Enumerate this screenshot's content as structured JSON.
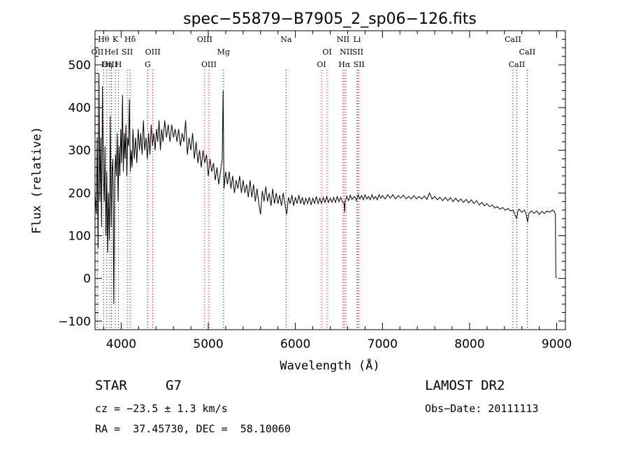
{
  "chart_data": {
    "type": "line",
    "title": "spec−55879−B7905_2_sp06−126.fits",
    "xlabel": "Wavelength (Å)",
    "ylabel": "Flux (relative)",
    "xlim": [
      3700,
      9100
    ],
    "ylim": [
      -120,
      580
    ],
    "x_ticks": [
      4000,
      5000,
      6000,
      7000,
      8000,
      9000
    ],
    "x_tick_labels": [
      "4000",
      "5000",
      "6000",
      "7000",
      "8000",
      "9000"
    ],
    "y_ticks": [
      -100,
      0,
      100,
      200,
      300,
      400,
      500
    ],
    "y_tick_labels": [
      "−100",
      "0",
      "100",
      "200",
      "300",
      "400",
      "500"
    ],
    "series": [
      {
        "color": "#000000",
        "points": [
          [
            3700,
            200
          ],
          [
            3715,
            150
          ],
          [
            3725,
            330
          ],
          [
            3735,
            70
          ],
          [
            3745,
            480
          ],
          [
            3755,
            180
          ],
          [
            3765,
            330
          ],
          [
            3775,
            120
          ],
          [
            3785,
            450
          ],
          [
            3795,
            250
          ],
          [
            3805,
            180
          ],
          [
            3815,
            310
          ],
          [
            3825,
            100
          ],
          [
            3835,
            250
          ],
          [
            3845,
            60
          ],
          [
            3855,
            200
          ],
          [
            3865,
            90
          ],
          [
            3875,
            380
          ],
          [
            3885,
            120
          ],
          [
            3895,
            250
          ],
          [
            3905,
            280
          ],
          [
            3915,
            -60
          ],
          [
            3925,
            230
          ],
          [
            3935,
            290
          ],
          [
            3945,
            240
          ],
          [
            3955,
            340
          ],
          [
            3965,
            180
          ],
          [
            3975,
            310
          ],
          [
            3985,
            240
          ],
          [
            3995,
            350
          ],
          [
            4005,
            270
          ],
          [
            4015,
            430
          ],
          [
            4025,
            250
          ],
          [
            4035,
            340
          ],
          [
            4045,
            280
          ],
          [
            4055,
            360
          ],
          [
            4065,
            240
          ],
          [
            4075,
            330
          ],
          [
            4085,
            310
          ],
          [
            4095,
            420
          ],
          [
            4105,
            250
          ],
          [
            4115,
            300
          ],
          [
            4125,
            260
          ],
          [
            4135,
            350
          ],
          [
            4150,
            280
          ],
          [
            4165,
            330
          ],
          [
            4180,
            270
          ],
          [
            4195,
            350
          ],
          [
            4210,
            300
          ],
          [
            4225,
            340
          ],
          [
            4240,
            290
          ],
          [
            4255,
            370
          ],
          [
            4270,
            300
          ],
          [
            4285,
            330
          ],
          [
            4300,
            280
          ],
          [
            4315,
            340
          ],
          [
            4330,
            290
          ],
          [
            4345,
            360
          ],
          [
            4360,
            310
          ],
          [
            4375,
            340
          ],
          [
            4390,
            300
          ],
          [
            4405,
            350
          ],
          [
            4420,
            320
          ],
          [
            4435,
            370
          ],
          [
            4450,
            300
          ],
          [
            4465,
            350
          ],
          [
            4480,
            320
          ],
          [
            4500,
            370
          ],
          [
            4520,
            330
          ],
          [
            4540,
            360
          ],
          [
            4560,
            320
          ],
          [
            4580,
            360
          ],
          [
            4600,
            330
          ],
          [
            4620,
            350
          ],
          [
            4640,
            320
          ],
          [
            4660,
            350
          ],
          [
            4680,
            310
          ],
          [
            4700,
            340
          ],
          [
            4720,
            320
          ],
          [
            4740,
            370
          ],
          [
            4760,
            290
          ],
          [
            4780,
            330
          ],
          [
            4800,
            300
          ],
          [
            4820,
            340
          ],
          [
            4840,
            280
          ],
          [
            4860,
            320
          ],
          [
            4880,
            270
          ],
          [
            4900,
            300
          ],
          [
            4920,
            260
          ],
          [
            4940,
            300
          ],
          [
            4960,
            270
          ],
          [
            4980,
            290
          ],
          [
            5000,
            240
          ],
          [
            5020,
            280
          ],
          [
            5040,
            250
          ],
          [
            5060,
            270
          ],
          [
            5080,
            230
          ],
          [
            5100,
            260
          ],
          [
            5120,
            220
          ],
          [
            5140,
            250
          ],
          [
            5160,
            280
          ],
          [
            5170,
            440
          ],
          [
            5180,
            210
          ],
          [
            5200,
            250
          ],
          [
            5220,
            220
          ],
          [
            5240,
            250
          ],
          [
            5260,
            210
          ],
          [
            5280,
            240
          ],
          [
            5300,
            200
          ],
          [
            5320,
            230
          ],
          [
            5340,
            210
          ],
          [
            5360,
            240
          ],
          [
            5380,
            200
          ],
          [
            5400,
            230
          ],
          [
            5420,
            200
          ],
          [
            5440,
            220
          ],
          [
            5460,
            190
          ],
          [
            5480,
            230
          ],
          [
            5500,
            190
          ],
          [
            5520,
            220
          ],
          [
            5540,
            180
          ],
          [
            5560,
            210
          ],
          [
            5580,
            175
          ],
          [
            5600,
            150
          ],
          [
            5620,
            205
          ],
          [
            5640,
            180
          ],
          [
            5660,
            215
          ],
          [
            5680,
            180
          ],
          [
            5700,
            200
          ],
          [
            5720,
            170
          ],
          [
            5740,
            210
          ],
          [
            5760,
            175
          ],
          [
            5780,
            200
          ],
          [
            5800,
            175
          ],
          [
            5820,
            195
          ],
          [
            5840,
            170
          ],
          [
            5860,
            200
          ],
          [
            5880,
            175
          ],
          [
            5900,
            150
          ],
          [
            5920,
            190
          ],
          [
            5940,
            175
          ],
          [
            5960,
            195
          ],
          [
            5980,
            170
          ],
          [
            6000,
            190
          ],
          [
            6020,
            175
          ],
          [
            6040,
            195
          ],
          [
            6060,
            175
          ],
          [
            6080,
            190
          ],
          [
            6100,
            172
          ],
          [
            6120,
            188
          ],
          [
            6140,
            175
          ],
          [
            6160,
            190
          ],
          [
            6180,
            172
          ],
          [
            6200,
            188
          ],
          [
            6220,
            176
          ],
          [
            6240,
            192
          ],
          [
            6260,
            175
          ],
          [
            6280,
            188
          ],
          [
            6300,
            176
          ],
          [
            6320,
            190
          ],
          [
            6340,
            178
          ],
          [
            6360,
            192
          ],
          [
            6380,
            178
          ],
          [
            6400,
            188
          ],
          [
            6420,
            178
          ],
          [
            6440,
            190
          ],
          [
            6460,
            178
          ],
          [
            6480,
            192
          ],
          [
            6500,
            180
          ],
          [
            6520,
            190
          ],
          [
            6540,
            180
          ],
          [
            6560,
            175
          ],
          [
            6565,
            155
          ],
          [
            6570,
            180
          ],
          [
            6590,
            192
          ],
          [
            6610,
            182
          ],
          [
            6630,
            195
          ],
          [
            6650,
            185
          ],
          [
            6680,
            192
          ],
          [
            6700,
            182
          ],
          [
            6720,
            196
          ],
          [
            6740,
            186
          ],
          [
            6760,
            194
          ],
          [
            6780,
            184
          ],
          [
            6800,
            196
          ],
          [
            6820,
            186
          ],
          [
            6840,
            192
          ],
          [
            6860,
            184
          ],
          [
            6880,
            196
          ],
          [
            6900,
            186
          ],
          [
            6920,
            192
          ],
          [
            6940,
            184
          ],
          [
            6960,
            196
          ],
          [
            6980,
            188
          ],
          [
            7000,
            194
          ],
          [
            7030,
            186
          ],
          [
            7060,
            196
          ],
          [
            7090,
            188
          ],
          [
            7120,
            196
          ],
          [
            7150,
            186
          ],
          [
            7180,
            194
          ],
          [
            7210,
            188
          ],
          [
            7240,
            195
          ],
          [
            7270,
            186
          ],
          [
            7300,
            192
          ],
          [
            7330,
            186
          ],
          [
            7360,
            194
          ],
          [
            7390,
            186
          ],
          [
            7420,
            192
          ],
          [
            7450,
            186
          ],
          [
            7480,
            193
          ],
          [
            7510,
            185
          ],
          [
            7540,
            200
          ],
          [
            7570,
            186
          ],
          [
            7600,
            192
          ],
          [
            7630,
            184
          ],
          [
            7660,
            190
          ],
          [
            7690,
            182
          ],
          [
            7720,
            190
          ],
          [
            7750,
            182
          ],
          [
            7780,
            189
          ],
          [
            7810,
            180
          ],
          [
            7840,
            188
          ],
          [
            7870,
            180
          ],
          [
            7900,
            186
          ],
          [
            7930,
            178
          ],
          [
            7960,
            185
          ],
          [
            7990,
            177
          ],
          [
            8020,
            184
          ],
          [
            8050,
            175
          ],
          [
            8080,
            182
          ],
          [
            8110,
            172
          ],
          [
            8140,
            178
          ],
          [
            8170,
            170
          ],
          [
            8200,
            175
          ],
          [
            8230,
            168
          ],
          [
            8260,
            172
          ],
          [
            8290,
            165
          ],
          [
            8320,
            168
          ],
          [
            8350,
            162
          ],
          [
            8380,
            166
          ],
          [
            8410,
            160
          ],
          [
            8440,
            164
          ],
          [
            8470,
            158
          ],
          [
            8500,
            160
          ],
          [
            8520,
            150
          ],
          [
            8540,
            140
          ],
          [
            8555,
            158
          ],
          [
            8570,
            162
          ],
          [
            8600,
            155
          ],
          [
            8630,
            160
          ],
          [
            8650,
            150
          ],
          [
            8665,
            132
          ],
          [
            8680,
            152
          ],
          [
            8710,
            158
          ],
          [
            8740,
            152
          ],
          [
            8770,
            158
          ],
          [
            8800,
            150
          ],
          [
            8830,
            157
          ],
          [
            8860,
            152
          ],
          [
            8890,
            158
          ],
          [
            8920,
            155
          ],
          [
            8950,
            160
          ],
          [
            8975,
            156
          ],
          [
            8985,
            150
          ],
          [
            8990,
            10
          ],
          [
            8995,
            0
          ]
        ]
      }
    ],
    "line_markers": [
      {
        "label": "Hθ",
        "x": 3798,
        "row": 1,
        "color": "#000000"
      },
      {
        "label": "OII",
        "x": 3727,
        "row": 2,
        "color": "#cc0000"
      },
      {
        "label": "OIII",
        "x": 3869,
        "row": 3,
        "color": "#cc0000"
      },
      {
        "label": "Hη",
        "x": 3835,
        "row": 3,
        "color": "#000000"
      },
      {
        "label": "HeI",
        "x": 3889,
        "row": 2,
        "color": "#000000"
      },
      {
        "label": "K",
        "x": 3934,
        "row": 1,
        "color": "#000000"
      },
      {
        "label": "H",
        "x": 3969,
        "row": 3,
        "color": "#000000"
      },
      {
        "label": "SII",
        "x": 4070,
        "row": 2,
        "color": "#cc0000"
      },
      {
        "label": "Hδ",
        "x": 4102,
        "row": 1,
        "color": "#000000"
      },
      {
        "label": "OIII",
        "x": 4363,
        "row": 2,
        "color": "#cc0000"
      },
      {
        "label": "G",
        "x": 4305,
        "row": 3,
        "color": "#000000"
      },
      {
        "label": "OIII",
        "x": 4959,
        "row": 1,
        "color": "#cc0000"
      },
      {
        "label": "OIII",
        "x": 5007,
        "row": 3,
        "color": "#cc0000"
      },
      {
        "label": "Mg",
        "x": 5175,
        "row": 2,
        "color": "#000000"
      },
      {
        "label": "Na",
        "x": 5893,
        "row": 1,
        "color": "#000000"
      },
      {
        "label": "OI",
        "x": 6300,
        "row": 3,
        "color": "#cc0000"
      },
      {
        "label": "OI",
        "x": 6364,
        "row": 2,
        "color": "#cc0000"
      },
      {
        "label": "NII",
        "x": 6548,
        "row": 1,
        "color": "#cc0000"
      },
      {
        "label": "NII",
        "x": 6583,
        "row": 2,
        "color": "#cc0000"
      },
      {
        "label": "Hα",
        "x": 6563,
        "row": 3,
        "color": "#cc0000"
      },
      {
        "label": "Li",
        "x": 6708,
        "row": 1,
        "color": "#000000"
      },
      {
        "label": "SII",
        "x": 6716,
        "row": 2,
        "color": "#cc0000"
      },
      {
        "label": "SII",
        "x": 6731,
        "row": 3,
        "color": "#cc0000"
      },
      {
        "label": "CaII",
        "x": 8498,
        "row": 1,
        "color": "#000000"
      },
      {
        "label": "CaII",
        "x": 8542,
        "row": 3,
        "color": "#000000"
      },
      {
        "label": "CaII",
        "x": 8662,
        "row": 2,
        "color": "#000000"
      }
    ]
  },
  "info": {
    "class_label": "STAR",
    "subclass_label": "G7",
    "survey_label": "LAMOST DR2",
    "cz_text": "cz = −23.5 ± 1.3 km/s",
    "obs_date_text": "Obs−Date: 20111113",
    "radec_text": "RA =  37.45730, DEC =  58.10060"
  }
}
